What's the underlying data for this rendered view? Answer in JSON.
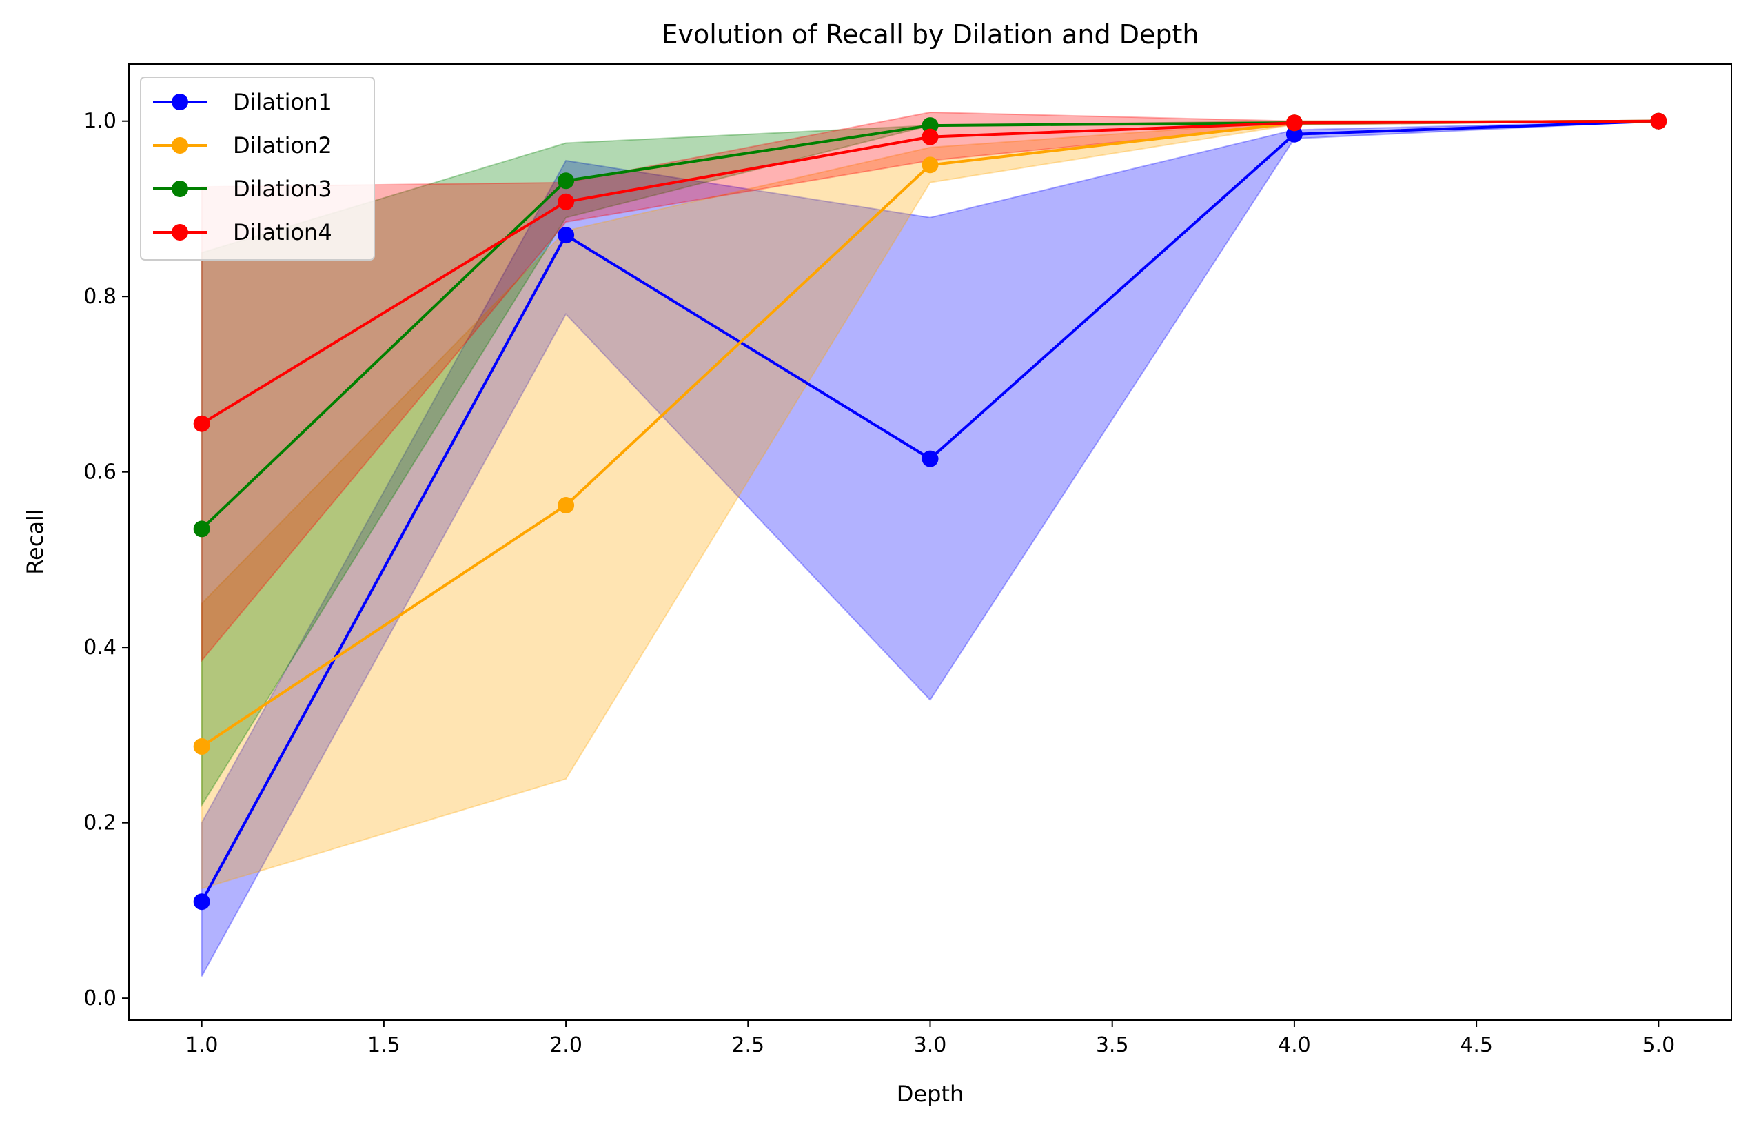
{
  "chart_data": {
    "type": "line",
    "title": "Evolution of Recall by Dilation and Depth",
    "xlabel": "Depth",
    "ylabel": "Recall",
    "xlim": [
      0.8,
      5.2
    ],
    "ylim": [
      -0.025,
      1.065
    ],
    "xticks": [
      1.0,
      1.5,
      2.0,
      2.5,
      3.0,
      3.5,
      4.0,
      4.5,
      5.0
    ],
    "xtick_labels": [
      "1.0",
      "1.5",
      "2.0",
      "2.5",
      "3.0",
      "3.5",
      "4.0",
      "4.5",
      "5.0"
    ],
    "yticks": [
      0.0,
      0.2,
      0.4,
      0.6,
      0.8,
      1.0
    ],
    "ytick_labels": [
      "0.0",
      "0.2",
      "0.4",
      "0.6",
      "0.8",
      "1.0"
    ],
    "grid": false,
    "legend_position": "top-left",
    "x": [
      1,
      2,
      3,
      4,
      5
    ],
    "series": [
      {
        "name": "Dilation1",
        "color": "#0000ff",
        "values": [
          0.11,
          0.87,
          0.615,
          0.985,
          1.0
        ],
        "lower": [
          0.025,
          0.78,
          0.34,
          0.98,
          1.0
        ],
        "upper": [
          0.2,
          0.955,
          0.89,
          0.99,
          1.0
        ]
      },
      {
        "name": "Dilation2",
        "color": "#ffa500",
        "values": [
          0.287,
          0.562,
          0.95,
          0.998,
          1.0
        ],
        "lower": [
          0.125,
          0.25,
          0.93,
          0.996,
          1.0
        ],
        "upper": [
          0.45,
          0.875,
          0.97,
          1.0,
          1.0
        ]
      },
      {
        "name": "Dilation3",
        "color": "#008000",
        "values": [
          0.535,
          0.932,
          0.995,
          0.998,
          1.0
        ],
        "lower": [
          0.22,
          0.89,
          0.995,
          0.996,
          1.0
        ],
        "upper": [
          0.85,
          0.975,
          0.995,
          1.0,
          1.0
        ]
      },
      {
        "name": "Dilation4",
        "color": "#ff0000",
        "values": [
          0.655,
          0.908,
          0.982,
          0.998,
          1.0
        ],
        "lower": [
          0.385,
          0.885,
          0.955,
          0.996,
          1.0
        ],
        "upper": [
          0.925,
          0.93,
          1.01,
          1.0,
          1.0
        ]
      }
    ]
  }
}
